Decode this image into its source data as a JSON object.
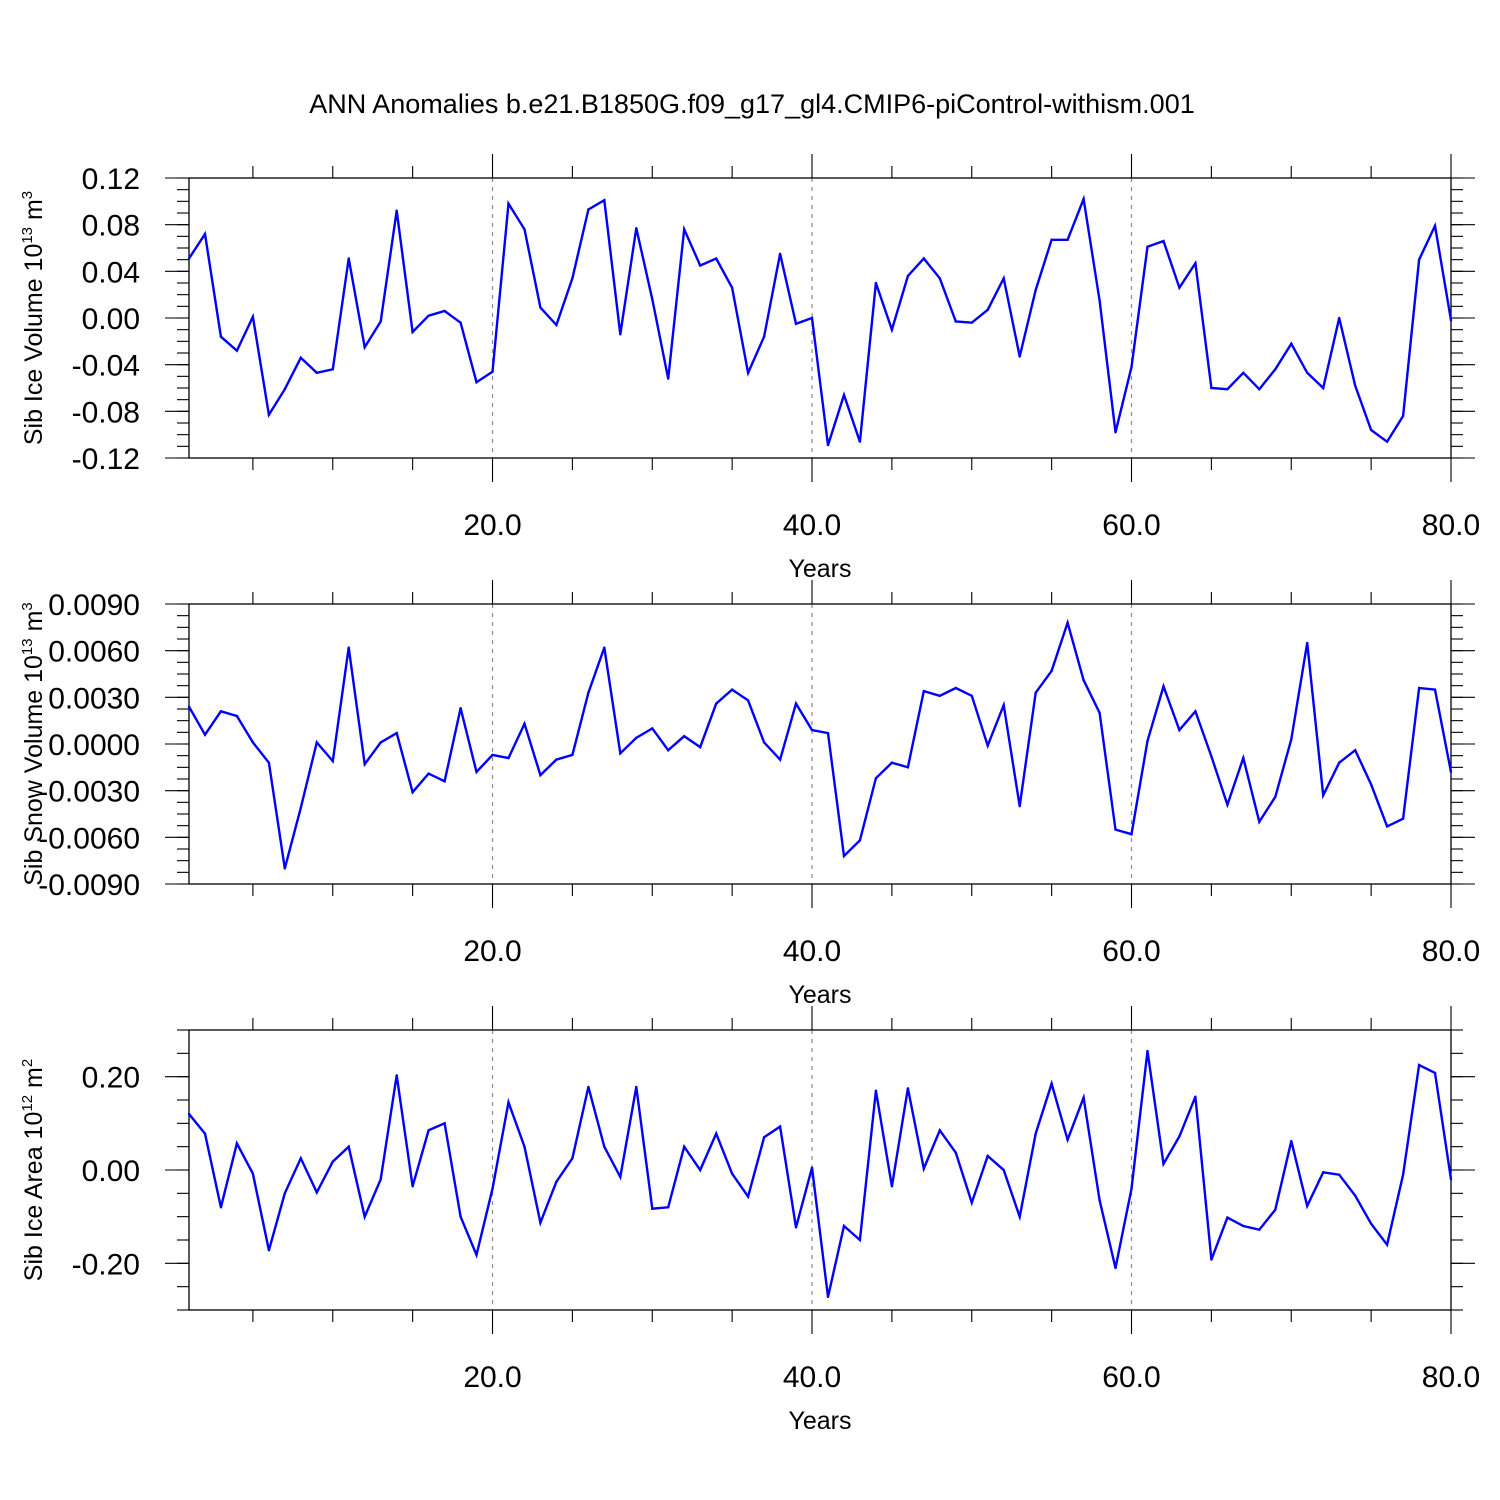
{
  "title": "ANN Anomalies b.e21.B1850G.f09_g17_gl4.CMIP6-piControl-withism.001",
  "line_color": "#0000ff",
  "chart_data": [
    {
      "type": "line",
      "ylabel_main": "Sib Ice Volume 10",
      "ylabel_exp": "13",
      "ylabel_unit": " m",
      "ylabel_unit_exp": "3",
      "xlabel": "Years",
      "xlim": [
        1,
        80
      ],
      "ylim": [
        -0.12,
        0.12
      ],
      "x_ticks": [
        20,
        40,
        60,
        80
      ],
      "x_tick_labels": [
        "20.0",
        "40.0",
        "60.0",
        "80.0"
      ],
      "y_ticks": [
        -0.12,
        -0.08,
        -0.04,
        0.0,
        0.04,
        0.08,
        0.12
      ],
      "y_tick_labels": [
        "-0.12",
        "-0.08",
        "-0.04",
        "0.00",
        "0.04",
        "0.08",
        "0.12"
      ],
      "grid_x": [
        20,
        40,
        60
      ],
      "x": [
        1,
        2,
        3,
        4,
        5,
        6,
        7,
        8,
        9,
        10,
        11,
        12,
        13,
        14,
        15,
        16,
        17,
        18,
        19,
        20,
        21,
        22,
        23,
        24,
        25,
        26,
        27,
        28,
        29,
        30,
        31,
        32,
        33,
        34,
        35,
        36,
        37,
        38,
        39,
        40,
        41,
        42,
        43,
        44,
        45,
        46,
        47,
        48,
        49,
        50,
        51,
        52,
        53,
        54,
        55,
        56,
        57,
        58,
        59,
        60,
        61,
        62,
        63,
        64,
        65,
        66,
        67,
        68,
        69,
        70,
        71,
        72,
        73,
        74,
        75,
        76,
        77,
        78,
        79,
        80
      ],
      "values": [
        0.051,
        0.072,
        -0.016,
        -0.028,
        0.001,
        -0.083,
        -0.061,
        -0.034,
        -0.047,
        -0.044,
        0.051,
        -0.025,
        -0.003,
        0.092,
        -0.012,
        0.002,
        0.006,
        -0.004,
        -0.055,
        -0.046,
        0.098,
        0.076,
        0.009,
        -0.006,
        0.034,
        0.093,
        0.101,
        -0.014,
        0.077,
        0.016,
        -0.052,
        0.076,
        0.045,
        0.051,
        0.026,
        -0.047,
        -0.016,
        0.055,
        -0.005,
        0.0,
        -0.109,
        -0.066,
        -0.106,
        0.03,
        -0.01,
        0.036,
        0.051,
        0.034,
        -0.003,
        -0.004,
        0.007,
        0.034,
        -0.033,
        0.024,
        0.067,
        0.067,
        0.102,
        0.015,
        -0.098,
        -0.042,
        0.061,
        0.066,
        0.026,
        0.047,
        -0.06,
        -0.061,
        -0.047,
        -0.061,
        -0.044,
        -0.022,
        -0.047,
        -0.06,
        0.0,
        -0.058,
        -0.096,
        -0.106,
        -0.084,
        0.05,
        0.079,
        -0.002
      ]
    },
    {
      "type": "line",
      "ylabel_main": "Sib Snow Volume 10",
      "ylabel_exp": "13",
      "ylabel_unit": " m",
      "ylabel_unit_exp": "3",
      "xlabel": "Years",
      "xlim": [
        1,
        80
      ],
      "ylim": [
        -0.009,
        0.009
      ],
      "x_ticks": [
        20,
        40,
        60,
        80
      ],
      "x_tick_labels": [
        "20.0",
        "40.0",
        "60.0",
        "80.0"
      ],
      "y_ticks": [
        -0.009,
        -0.006,
        -0.003,
        0.0,
        0.003,
        0.006,
        0.009
      ],
      "y_tick_labels": [
        "-0.0090",
        "-0.0060",
        "-0.0030",
        "0.0000",
        "0.0030",
        "0.0060",
        "0.0090"
      ],
      "grid_x": [
        20,
        40,
        60
      ],
      "x": [
        1,
        2,
        3,
        4,
        5,
        6,
        7,
        8,
        9,
        10,
        11,
        12,
        13,
        14,
        15,
        16,
        17,
        18,
        19,
        20,
        21,
        22,
        23,
        24,
        25,
        26,
        27,
        28,
        29,
        30,
        31,
        32,
        33,
        34,
        35,
        36,
        37,
        38,
        39,
        40,
        41,
        42,
        43,
        44,
        45,
        46,
        47,
        48,
        49,
        50,
        51,
        52,
        53,
        54,
        55,
        56,
        57,
        58,
        59,
        60,
        61,
        62,
        63,
        64,
        65,
        66,
        67,
        68,
        69,
        70,
        71,
        72,
        73,
        74,
        75,
        76,
        77,
        78,
        79,
        80
      ],
      "values": [
        0.0024,
        0.0006,
        0.0021,
        0.0018,
        0.0001,
        -0.0012,
        -0.008,
        -0.0041,
        0.0001,
        -0.0011,
        0.0062,
        -0.0013,
        0.0001,
        0.0007,
        -0.0031,
        -0.0019,
        -0.0024,
        0.0023,
        -0.0018,
        -0.0007,
        -0.0009,
        0.0013,
        -0.002,
        -0.001,
        -0.0007,
        0.0033,
        0.0062,
        -0.0006,
        0.0004,
        0.001,
        -0.0004,
        0.0005,
        -0.0002,
        0.0026,
        0.0035,
        0.0028,
        0.0001,
        -0.001,
        0.0026,
        0.0009,
        0.0007,
        -0.0072,
        -0.0062,
        -0.0022,
        -0.0012,
        -0.0015,
        0.0034,
        0.0031,
        0.0036,
        0.0031,
        -0.0001,
        0.0025,
        -0.004,
        0.0033,
        0.0047,
        0.0078,
        0.0041,
        0.002,
        -0.0055,
        -0.0058,
        0.0002,
        0.0037,
        0.0009,
        0.0021,
        -0.0008,
        -0.0039,
        -0.0009,
        -0.005,
        -0.0034,
        0.0003,
        0.0065,
        -0.0033,
        -0.0012,
        -0.0004,
        -0.0026,
        -0.0053,
        -0.0048,
        0.0036,
        0.0035,
        -0.0018
      ]
    },
    {
      "type": "line",
      "ylabel_main": "Sib Ice Area 10",
      "ylabel_exp": "12",
      "ylabel_unit": " m",
      "ylabel_unit_exp": "2",
      "xlabel": "Years",
      "xlim": [
        1,
        80
      ],
      "ylim": [
        -0.3,
        0.3
      ],
      "x_ticks": [
        20,
        40,
        60,
        80
      ],
      "x_tick_labels": [
        "20.0",
        "40.0",
        "60.0",
        "80.0"
      ],
      "y_ticks": [
        -0.2,
        0.0,
        0.2
      ],
      "y_tick_labels": [
        "-0.20",
        "0.00",
        "0.20"
      ],
      "grid_x": [
        20,
        40,
        60
      ],
      "x": [
        1,
        2,
        3,
        4,
        5,
        6,
        7,
        8,
        9,
        10,
        11,
        12,
        13,
        14,
        15,
        16,
        17,
        18,
        19,
        20,
        21,
        22,
        23,
        24,
        25,
        26,
        27,
        28,
        29,
        30,
        31,
        32,
        33,
        34,
        35,
        36,
        37,
        38,
        39,
        40,
        41,
        42,
        43,
        44,
        45,
        46,
        47,
        48,
        49,
        50,
        51,
        52,
        53,
        54,
        55,
        56,
        57,
        58,
        59,
        60,
        61,
        62,
        63,
        64,
        65,
        66,
        67,
        68,
        69,
        70,
        71,
        72,
        73,
        74,
        75,
        76,
        77,
        78,
        79,
        80
      ],
      "values": [
        0.12,
        0.078,
        -0.08,
        0.057,
        -0.008,
        -0.172,
        -0.05,
        0.025,
        -0.048,
        0.018,
        0.05,
        -0.1,
        -0.02,
        0.203,
        -0.035,
        0.085,
        0.1,
        -0.1,
        -0.182,
        -0.04,
        0.145,
        0.05,
        -0.113,
        -0.025,
        0.025,
        0.178,
        0.05,
        -0.015,
        0.178,
        -0.083,
        -0.08,
        0.05,
        0.0,
        0.078,
        -0.008,
        -0.057,
        0.07,
        0.093,
        -0.123,
        0.005,
        -0.272,
        -0.12,
        -0.15,
        0.17,
        -0.035,
        0.175,
        0.003,
        0.085,
        0.037,
        -0.07,
        0.03,
        0.0,
        -0.1,
        0.078,
        0.185,
        0.065,
        0.155,
        -0.065,
        -0.21,
        -0.04,
        0.255,
        0.013,
        0.072,
        0.157,
        -0.192,
        -0.102,
        -0.12,
        -0.128,
        -0.085,
        0.062,
        -0.077,
        -0.005,
        -0.01,
        -0.055,
        -0.115,
        -0.16,
        -0.01,
        0.225,
        0.208,
        -0.02
      ]
    }
  ]
}
